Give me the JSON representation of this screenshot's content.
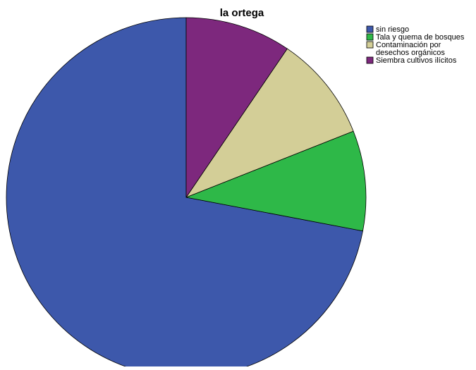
{
  "chart_data": {
    "type": "pie",
    "title": "la ortega",
    "start_angle_deg": 0,
    "direction": "counterclockwise",
    "legend_position": "top-right",
    "slices": [
      {
        "label": "sin riesgo",
        "label_lines": [
          "sin riesgo"
        ],
        "value": 72.0,
        "color": "#3d58ab"
      },
      {
        "label": "Tala  y quema de bosques",
        "label_lines": [
          "Tala  y quema de bosques"
        ],
        "value": 9.0,
        "color": "#2eb848"
      },
      {
        "label": "Contaminación por desechos  orgánicos",
        "label_lines": [
          "Contaminación por",
          "desechos  orgánicos"
        ],
        "value": 9.5,
        "color": "#d3ce97"
      },
      {
        "label": "Siembra cultivos ilícitos",
        "label_lines": [
          "Siembra cultivos ilícitos"
        ],
        "value": 9.5,
        "color": "#7d287d"
      }
    ]
  }
}
